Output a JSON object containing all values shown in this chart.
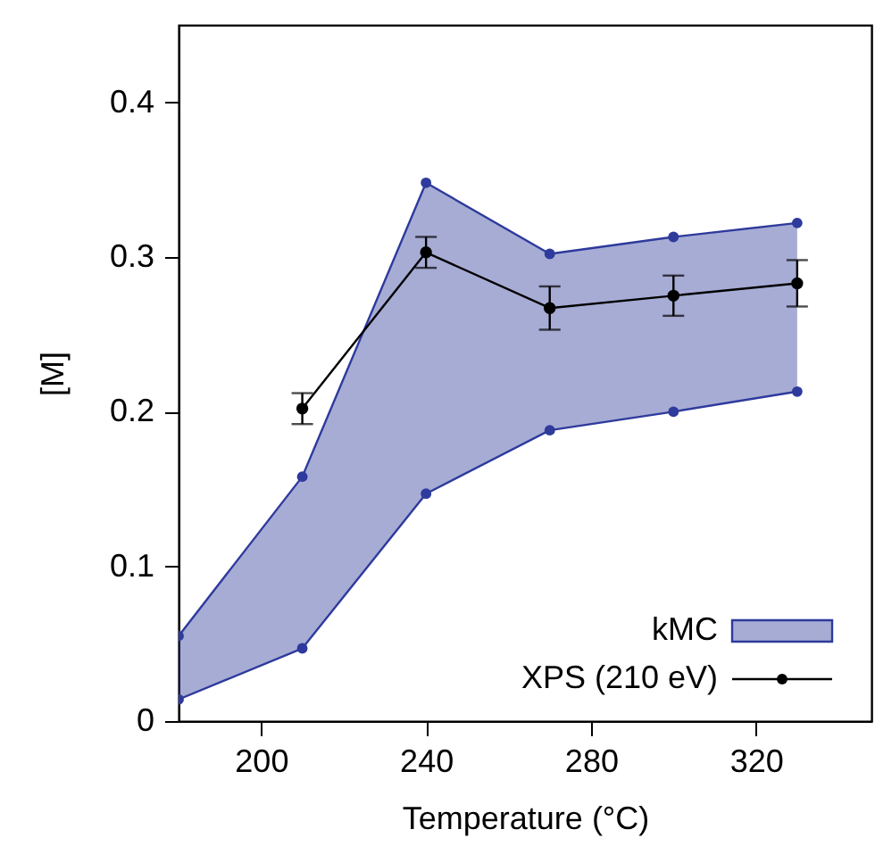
{
  "chart_data": {
    "type": "line",
    "xlabel": "Temperature (°C)",
    "ylabel": "[M]",
    "xlim": [
      180,
      348
    ],
    "xticks": [
      200,
      240,
      280,
      320
    ],
    "ylim": [
      0,
      0.45
    ],
    "yticks": [
      0,
      0.1,
      0.2,
      0.3,
      0.4
    ],
    "grid": false,
    "legend": "bottom right",
    "marker": "circle",
    "line_style": "solid",
    "series": [
      {
        "name": "kMC",
        "color": "#2e3a9c",
        "x": [
          180,
          210,
          240,
          270,
          300,
          330
        ],
        "values": [
          0.055,
          0.158,
          0.348,
          0.302,
          0.313,
          0.322
        ],
        "upper": [
          0.055,
          0.158,
          0.348,
          0.302,
          0.313,
          0.322
        ],
        "lower": [
          0.014,
          0.047,
          0.147,
          0.188,
          0.2,
          0.213
        ]
      },
      {
        "color": "#2e3a9c",
        "x": [
          180,
          210,
          240,
          270,
          300,
          330
        ],
        "values": [
          0.014,
          0.047,
          0.147,
          0.188,
          0.2,
          0.213
        ]
      },
      {
        "name": "XPS (210 eV)",
        "color": "#000000",
        "x": [
          210,
          240,
          270,
          300,
          330
        ],
        "values": [
          0.202,
          0.303,
          0.267,
          0.275,
          0.283
        ],
        "errors": [
          0.01,
          0.01,
          0.014,
          0.013,
          0.015
        ]
      }
    ]
  }
}
